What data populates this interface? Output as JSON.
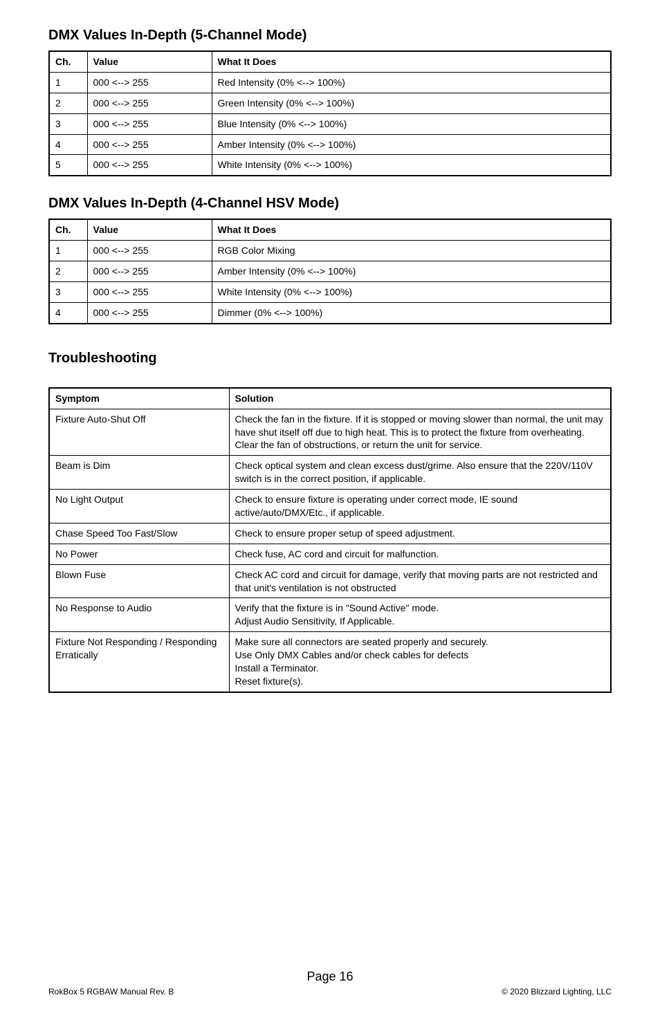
{
  "sections": {
    "dmx5": {
      "title": "DMX Values In-Depth (5-Channel Mode)",
      "headers": [
        "Ch.",
        "Value",
        "What It Does"
      ],
      "rows": [
        [
          "1",
          "000 <--> 255",
          "Red Intensity (0% <--> 100%)"
        ],
        [
          "2",
          "000 <--> 255",
          "Green Intensity (0% <--> 100%)"
        ],
        [
          "3",
          "000 <--> 255",
          "Blue Intensity (0% <--> 100%)"
        ],
        [
          "4",
          "000 <--> 255",
          "Amber Intensity (0% <--> 100%)"
        ],
        [
          "5",
          "000 <--> 255",
          "White Intensity (0% <--> 100%)"
        ]
      ]
    },
    "dmx4": {
      "title": "DMX Values In-Depth (4-Channel HSV Mode)",
      "headers": [
        "Ch.",
        "Value",
        "What It Does"
      ],
      "rows": [
        [
          "1",
          "000 <--> 255",
          "RGB Color Mixing"
        ],
        [
          "2",
          "000 <--> 255",
          "Amber Intensity (0% <--> 100%)"
        ],
        [
          "3",
          "000 <--> 255",
          "White Intensity (0% <--> 100%)"
        ],
        [
          "4",
          "000 <--> 255",
          "Dimmer (0% <--> 100%)"
        ]
      ]
    },
    "troubleshooting": {
      "title": "Troubleshooting",
      "headers": [
        "Symptom",
        "Solution"
      ],
      "rows": [
        [
          "Fixture Auto-Shut Off",
          "Check the fan in the fixture.  If it is stopped or moving slower than normal, the unit may have shut itself off due to high heat.  This is to protect the fixture from overheating.  Clear the fan of obstructions, or return the unit for service."
        ],
        [
          "Beam is Dim",
          "Check optical system and clean excess dust/grime.  Also ensure that the 220V/110V switch is in the correct position, if applicable."
        ],
        [
          "No Light Output",
          "Check to ensure fixture is operating under correct mode, IE sound active/auto/DMX/Etc., if applicable."
        ],
        [
          "Chase Speed Too Fast/Slow",
          "Check to ensure proper setup of speed adjustment."
        ],
        [
          "No Power",
          "Check fuse, AC cord and circuit for malfunction."
        ],
        [
          "Blown Fuse",
          "Check AC cord and circuit for damage, verify that moving parts are not restricted and that unit's ventilation is not obstructed"
        ],
        [
          "No Response to Audio",
          "Verify that the fixture is in \"Sound Active\" mode.\nAdjust Audio Sensitivity, If Applicable."
        ],
        [
          "Fixture Not Responding / Responding Erratically",
          "Make sure all connectors are seated properly and securely.\nUse Only DMX Cables and/or check cables for defects\nInstall a Terminator.\nReset fixture(s)."
        ]
      ]
    }
  },
  "footer": {
    "page_label": "Page 16",
    "left": "RokBox 5 RGBAW Manual Rev. B",
    "right": "© 2020 Blizzard Lighting, LLC"
  }
}
